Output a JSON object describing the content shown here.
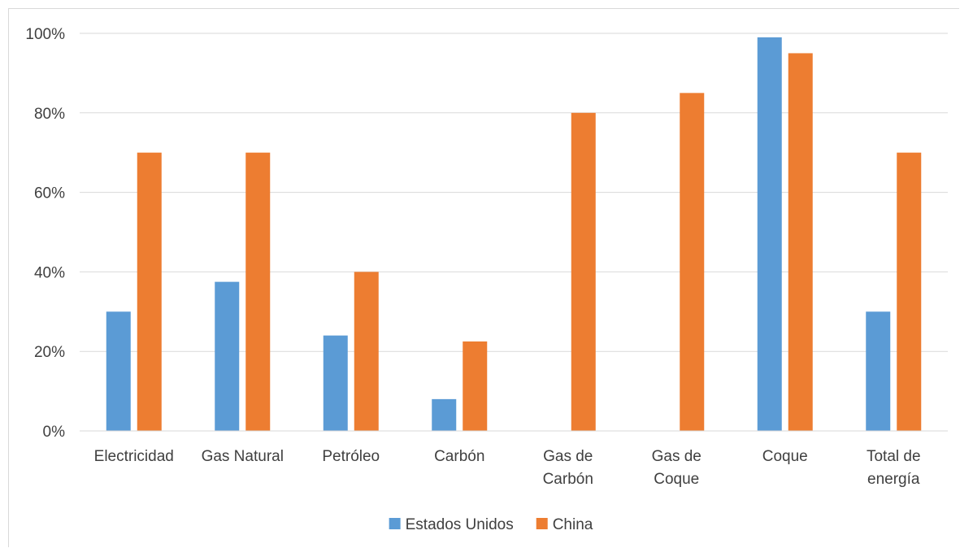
{
  "chart_data": {
    "type": "bar",
    "title": "",
    "xlabel": "",
    "ylabel": "",
    "ylim": [
      0,
      100
    ],
    "y_ticks": [
      "0%",
      "20%",
      "40%",
      "60%",
      "80%",
      "100%"
    ],
    "y_tick_values": [
      0,
      20,
      40,
      60,
      80,
      100
    ],
    "grid": true,
    "legend_position": "bottom",
    "categories": [
      [
        "Electricidad"
      ],
      [
        "Gas Natural"
      ],
      [
        "Petróleo"
      ],
      [
        "Carbón"
      ],
      [
        "Gas de",
        "Carbón"
      ],
      [
        "Gas de",
        "Coque"
      ],
      [
        "Coque"
      ],
      [
        "Total de",
        "energía"
      ]
    ],
    "series": [
      {
        "name": "Estados Unidos",
        "color": "#5b9bd5",
        "values": [
          30,
          37.5,
          24,
          8,
          0,
          0,
          99,
          30
        ]
      },
      {
        "name": "China",
        "color": "#ed7d31",
        "values": [
          70,
          70,
          40,
          22.5,
          80,
          85,
          95,
          70
        ]
      }
    ]
  }
}
